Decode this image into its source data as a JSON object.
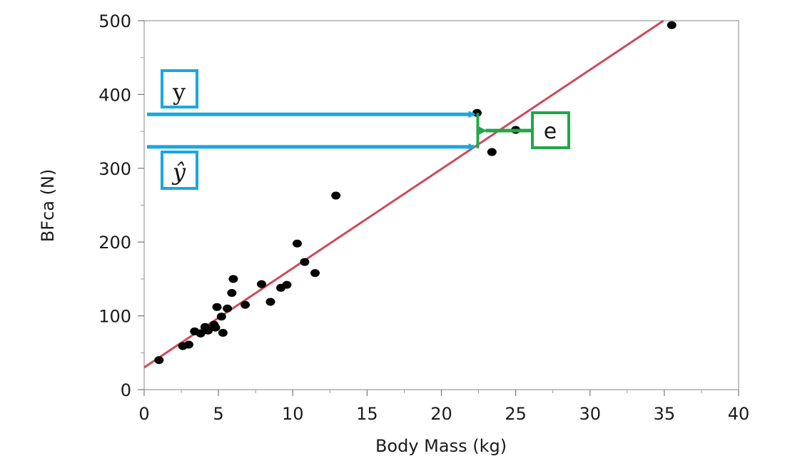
{
  "chart_data": {
    "type": "scatter",
    "title": "",
    "xlabel": "Body Mass (kg)",
    "ylabel": "BFca (N)",
    "xlim": [
      0,
      40
    ],
    "ylim": [
      0,
      500
    ],
    "x_ticks": [
      "0",
      "5",
      "10",
      "15",
      "20",
      "25",
      "30",
      "35",
      "40"
    ],
    "y_ticks": [
      "0",
      "100",
      "200",
      "300",
      "400",
      "500"
    ],
    "grid": false,
    "points": [
      {
        "x": 1.0,
        "y": 40
      },
      {
        "x": 2.6,
        "y": 59
      },
      {
        "x": 3.0,
        "y": 61
      },
      {
        "x": 3.4,
        "y": 79
      },
      {
        "x": 3.8,
        "y": 76
      },
      {
        "x": 4.1,
        "y": 85
      },
      {
        "x": 4.3,
        "y": 80
      },
      {
        "x": 4.7,
        "y": 88
      },
      {
        "x": 4.8,
        "y": 84
      },
      {
        "x": 4.9,
        "y": 112
      },
      {
        "x": 5.2,
        "y": 99
      },
      {
        "x": 5.3,
        "y": 77
      },
      {
        "x": 5.6,
        "y": 110
      },
      {
        "x": 5.9,
        "y": 131
      },
      {
        "x": 6.0,
        "y": 150
      },
      {
        "x": 6.8,
        "y": 115
      },
      {
        "x": 7.9,
        "y": 143
      },
      {
        "x": 8.5,
        "y": 119
      },
      {
        "x": 9.2,
        "y": 138
      },
      {
        "x": 9.6,
        "y": 142
      },
      {
        "x": 10.3,
        "y": 198
      },
      {
        "x": 10.8,
        "y": 173
      },
      {
        "x": 11.5,
        "y": 158
      },
      {
        "x": 12.9,
        "y": 263
      },
      {
        "x": 22.4,
        "y": 375
      },
      {
        "x": 23.4,
        "y": 322
      },
      {
        "x": 25.0,
        "y": 352
      },
      {
        "x": 35.5,
        "y": 494
      }
    ],
    "fit_line": {
      "intercept": 30,
      "slope": 13.45,
      "color": "#cc4b5a"
    },
    "annotations": {
      "y_label": "y",
      "yhat_label": "ŷ",
      "e_label": "e",
      "observed_x": 22.4,
      "observed_y": 375,
      "predicted_y": 331,
      "arrow_color": "#1aa7e0",
      "residual_color": "#1fa84a"
    }
  }
}
